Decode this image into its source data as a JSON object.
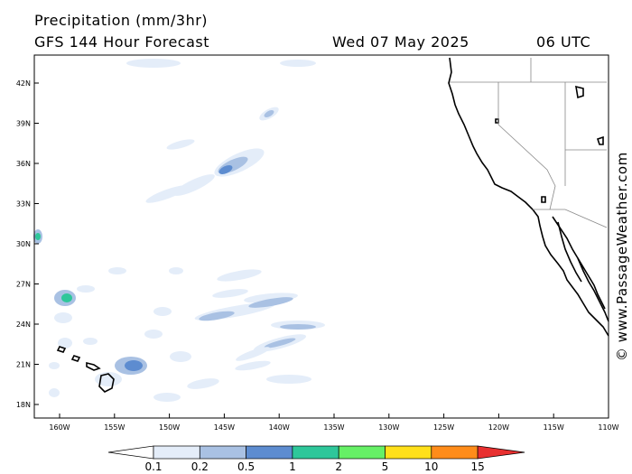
{
  "header": {
    "title": "Precipitation (mm/3hr)",
    "subtitle": "GFS 144 Hour Forecast",
    "date": "Wed 07 May 2025",
    "time": "06 UTC"
  },
  "watermark": "© www.PassageWeather.com",
  "lat_labels": [
    "42N",
    "39N",
    "36N",
    "33N",
    "30N",
    "27N",
    "24N",
    "21N",
    "18N"
  ],
  "lon_labels": [
    "160W",
    "155W",
    "150W",
    "145W",
    "140W",
    "135W",
    "130W",
    "125W",
    "120W",
    "115W",
    "110W"
  ],
  "legend": {
    "ticks": [
      "0.1",
      "0.2",
      "0.5",
      "1",
      "2",
      "5",
      "10",
      "15"
    ],
    "colors": [
      "#ffffff",
      "#e4edf9",
      "#a9c1e3",
      "#5d8cd0",
      "#2ec79a",
      "#66f066",
      "#ffe01a",
      "#ff8c1a",
      "#e83030"
    ]
  },
  "colors": {
    "light": "#e4edf9",
    "mid": "#a9c1e3",
    "heavy": "#5d8cd0",
    "green": "#2ec79a"
  }
}
